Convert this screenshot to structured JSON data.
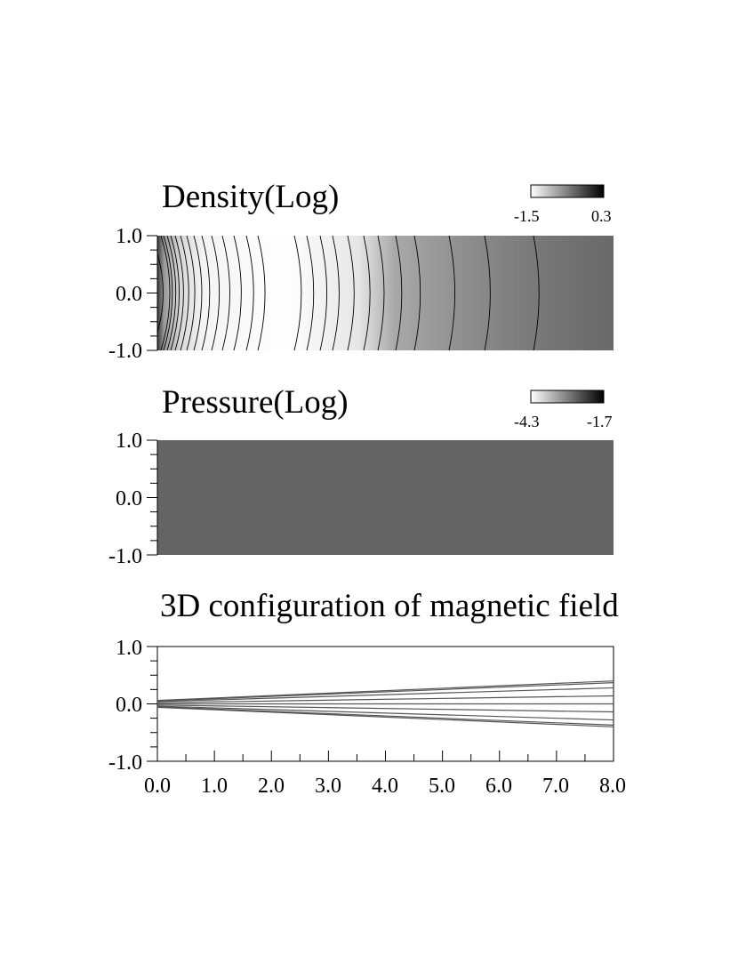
{
  "chart_data": [
    {
      "type": "heatmap",
      "title": "Density(Log)",
      "colorbar": {
        "min_label": "-1.5",
        "max_label": "0.3",
        "min": -1.5,
        "max": 0.3
      },
      "ylim": [
        -1.0,
        1.0
      ],
      "xlim": [
        0.0,
        8.0
      ],
      "y_tick_labels": [
        "1.0",
        "0.0",
        "-1.0"
      ],
      "contour_levels_count": 28
    },
    {
      "type": "heatmap",
      "title": "Pressure(Log)",
      "colorbar": {
        "min_label": "-4.3",
        "max_label": "-1.7",
        "min": -4.3,
        "max": -1.7
      },
      "ylim": [
        -1.0,
        1.0
      ],
      "xlim": [
        0.0,
        8.0
      ],
      "y_tick_labels": [
        "1.0",
        "0.0",
        "-1.0"
      ],
      "uniform_value_gray": "#646464"
    },
    {
      "type": "line",
      "title": "3D configuration of magnetic field",
      "xlim": [
        0.0,
        8.0
      ],
      "ylim": [
        -1.0,
        1.0
      ],
      "y_tick_labels": [
        "1.0",
        "0.0",
        "-1.0"
      ],
      "x_tick_labels": [
        "0.0",
        "1.0",
        "2.0",
        "3.0",
        "4.0",
        "5.0",
        "6.0",
        "7.0",
        "8.0"
      ],
      "series": [
        {
          "x": [
            0.0,
            8.0
          ],
          "y": [
            0.06,
            0.4
          ]
        },
        {
          "x": [
            0.0,
            8.0
          ],
          "y": [
            0.05,
            0.37
          ]
        },
        {
          "x": [
            0.0,
            8.0
          ],
          "y": [
            0.04,
            0.28
          ]
        },
        {
          "x": [
            0.0,
            8.0
          ],
          "y": [
            0.02,
            0.14
          ]
        },
        {
          "x": [
            0.0,
            8.0
          ],
          "y": [
            0.0,
            0.0
          ]
        },
        {
          "x": [
            0.0,
            8.0
          ],
          "y": [
            -0.02,
            -0.14
          ]
        },
        {
          "x": [
            0.0,
            8.0
          ],
          "y": [
            -0.04,
            -0.28
          ]
        },
        {
          "x": [
            0.0,
            8.0
          ],
          "y": [
            -0.05,
            -0.37
          ]
        },
        {
          "x": [
            0.0,
            8.0
          ],
          "y": [
            -0.06,
            -0.4
          ]
        }
      ]
    }
  ]
}
